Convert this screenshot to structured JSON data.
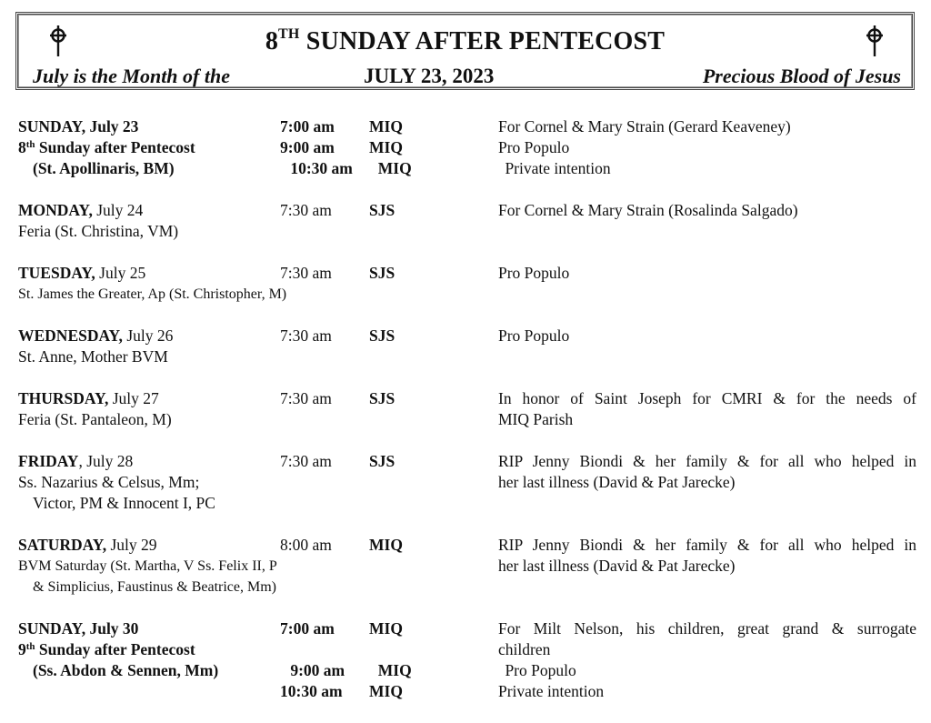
{
  "header": {
    "title_num": "8",
    "title_sup": "TH",
    "title_rest": " SUNDAY AFTER PENTECOST",
    "left": "July is the Month of the",
    "date": "JULY 23, 2023",
    "right": "Precious Blood of Jesus",
    "icon": "celtic-cross-icon"
  },
  "entries": [
    {
      "time_bold": true,
      "rows": [
        {
          "b": "SUNDAY, July 23",
          "time": "7:00 am",
          "loc": "MIQ",
          "int": "For Cornel & Mary Strain (Gerard Keaveney)"
        },
        {
          "b": "8",
          "sup": "th",
          "b2": " Sunday after Pentecost",
          "time": "9:00 am",
          "loc": "MIQ",
          "int": "Pro Populo"
        },
        {
          "b": "(St. Apollinaris, BM)",
          "indent": true,
          "time": "10:30 am",
          "loc": "MIQ",
          "int": "Private intention"
        }
      ]
    },
    {
      "rows": [
        {
          "b": "MONDAY,",
          "n": " July 24",
          "time": "7:30 am",
          "loc": "SJS",
          "int": "For Cornel & Mary Strain (Rosalinda Salgado)"
        },
        {
          "n": "Feria (St. Christina, VM)"
        }
      ]
    },
    {
      "rows": [
        {
          "b": "TUESDAY,",
          "n": " July 25",
          "time": "7:30 am",
          "loc": "SJS",
          "int": "Pro Populo"
        },
        {
          "n": "St. James the Greater, Ap (St. Christopher, M)",
          "small": true
        }
      ]
    },
    {
      "rows": [
        {
          "b": "WEDNESDAY,",
          "n": " July 26",
          "time": "7:30 am",
          "loc": "SJS",
          "int": "Pro Populo"
        },
        {
          "n": "St. Anne, Mother BVM"
        }
      ]
    },
    {
      "rows": [
        {
          "b": "THURSDAY,",
          "n": " July 27",
          "time": "7:30 am",
          "loc": "SJS",
          "int": "In honor of Saint Joseph for CMRI & for the needs of",
          "just": true
        },
        {
          "n": "Feria (St. Pantaleon, M)",
          "int": "MIQ Parish"
        }
      ]
    },
    {
      "rows": [
        {
          "b": "FRIDAY",
          "n": ", July 28",
          "time": "7:30 am",
          "loc": "SJS",
          "int": "RIP Jenny Biondi & her family & for all who helped in",
          "just": true
        },
        {
          "n": "Ss. Nazarius & Celsus, Mm;",
          "int": "her last illness (David & Pat Jarecke)"
        },
        {
          "n": "Victor, PM & Innocent I, PC",
          "indent": true
        }
      ]
    },
    {
      "rows": [
        {
          "b": "SATURDAY,",
          "n": " July 29",
          "time": "8:00 am",
          "loc": "MIQ",
          "int": "RIP Jenny Biondi & her family & for all who helped in",
          "just": true
        },
        {
          "n": "BVM Saturday (St. Martha, V Ss. Felix II, P",
          "small": true,
          "int": "her last illness (David & Pat Jarecke)"
        },
        {
          "n": "& Simplicius, Faustinus & Beatrice, Mm)",
          "small": true,
          "indent": true
        }
      ]
    },
    {
      "time_bold": true,
      "rows": [
        {
          "b": "SUNDAY, July 30",
          "time": "7:00 am",
          "loc": "MIQ",
          "int": "For Milt Nelson, his children, great grand & surrogate",
          "just": true
        },
        {
          "b": "9",
          "sup": "th",
          "b2": " Sunday after Pentecost",
          "int": "children"
        },
        {
          "b": "(Ss. Abdon & Sennen, Mm)",
          "indent": true,
          "time": "9:00 am",
          "loc": "MIQ",
          "int": "Pro Populo"
        },
        {
          "time": "10:30 am",
          "loc": "MIQ",
          "int": "Private intention"
        }
      ]
    }
  ]
}
